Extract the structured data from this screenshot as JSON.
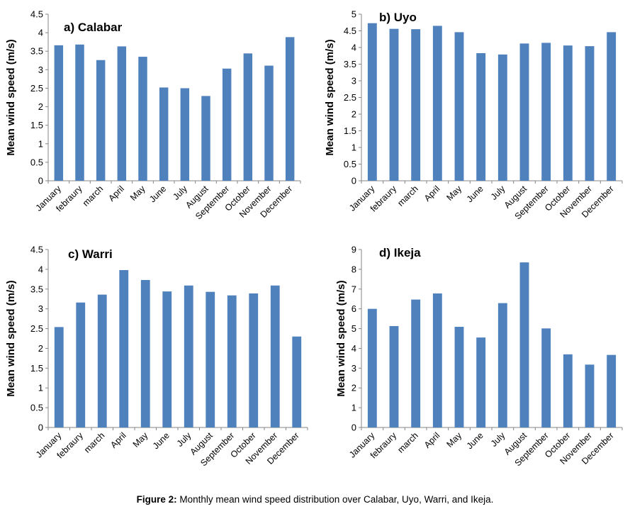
{
  "caption": {
    "label": "Figure 2:",
    "text": " Monthly mean wind speed distribution over Calabar, Uyo, Warri, and Ikeja."
  },
  "colors": {
    "bar": "#4f81bd",
    "axis": "#868686"
  },
  "chart_data": [
    {
      "type": "bar",
      "title": "a) Calabar",
      "xlabel": "",
      "ylabel": "Mean wind speed (m/s)",
      "ylim": [
        0,
        4.5
      ],
      "ytick_step": 0.5,
      "ytick_labels": [
        "0",
        "0.5",
        "1",
        "1.5",
        "2",
        "2.5",
        "3",
        "3.5",
        "4",
        "4.5"
      ],
      "categories": [
        "January",
        "febraury",
        "march",
        "April",
        "May",
        "June",
        "July",
        "August",
        "September",
        "October",
        "November",
        "December"
      ],
      "values": [
        3.66,
        3.68,
        3.26,
        3.63,
        3.35,
        2.52,
        2.5,
        2.29,
        3.03,
        3.44,
        3.11,
        3.88
      ],
      "grid": false,
      "legend": "none"
    },
    {
      "type": "bar",
      "title": "b) Uyo",
      "xlabel": "",
      "ylabel": "Mean wind speed (m/s)",
      "ylim": [
        0,
        5
      ],
      "ytick_step": 0.5,
      "ytick_labels": [
        "0",
        "0.5",
        "1",
        "1.5",
        "2",
        "2.5",
        "3",
        "3.5",
        "4",
        "4.5",
        "5"
      ],
      "categories": [
        "January",
        "febraury",
        "march",
        "April",
        "May",
        "June",
        "July",
        "August",
        "September",
        "October",
        "November",
        "December"
      ],
      "values": [
        4.73,
        4.56,
        4.55,
        4.65,
        4.46,
        3.83,
        3.79,
        4.12,
        4.14,
        4.06,
        4.04,
        4.46
      ],
      "grid": false,
      "legend": "none"
    },
    {
      "type": "bar",
      "title": "c) Warri",
      "xlabel": "",
      "ylabel": "Mean wind speed (m/s)",
      "ylim": [
        0,
        4.5
      ],
      "ytick_step": 0.5,
      "ytick_labels": [
        "0",
        "0.5",
        "1",
        "1.5",
        "2",
        "2.5",
        "3",
        "3.5",
        "4",
        "4.5"
      ],
      "categories": [
        "January",
        "febraury",
        "march",
        "April",
        "May",
        "June",
        "July",
        "August",
        "September",
        "October",
        "November",
        "December"
      ],
      "values": [
        2.54,
        3.16,
        3.36,
        3.98,
        3.73,
        3.44,
        3.59,
        3.43,
        3.34,
        3.39,
        3.59,
        2.3
      ],
      "grid": false,
      "legend": "none"
    },
    {
      "type": "bar",
      "title": "d) Ikeja",
      "xlabel": "",
      "ylabel": "Mean wind speed (m/s)",
      "ylim": [
        0,
        9
      ],
      "ytick_step": 1,
      "ytick_labels": [
        "0",
        "1",
        "2",
        "3",
        "4",
        "5",
        "6",
        "7",
        "8",
        "9"
      ],
      "categories": [
        "January",
        "febraury",
        "march",
        "April",
        "May",
        "June",
        "July",
        "August",
        "September",
        "October",
        "November",
        "December"
      ],
      "values": [
        6.0,
        5.13,
        6.47,
        6.78,
        5.09,
        4.55,
        6.29,
        8.35,
        5.01,
        3.7,
        3.18,
        3.67
      ],
      "grid": false,
      "legend": "none"
    }
  ]
}
